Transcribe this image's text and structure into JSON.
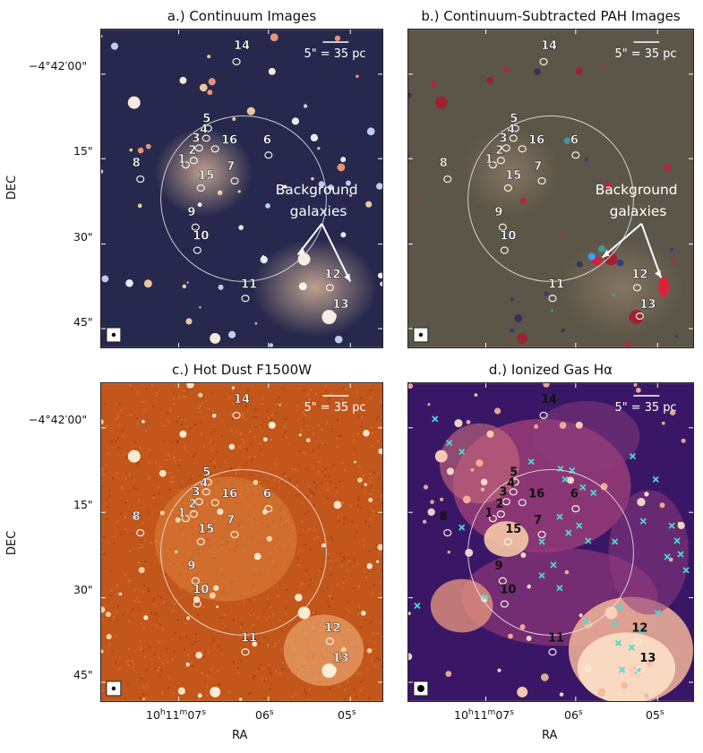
{
  "figure": {
    "panels": [
      {
        "key": "a",
        "title": "a.) Continuum Images",
        "style": "continuum"
      },
      {
        "key": "b",
        "title": "b.) Continuum-Subtracted PAH Images",
        "style": "pah"
      },
      {
        "key": "c",
        "title": "c.) Hot Dust F1500W",
        "style": "hotdust"
      },
      {
        "key": "d",
        "title": "d.) Ionized Gas Hα",
        "style": "halpha"
      }
    ],
    "scale_label": "5\" = 35 pc",
    "annotation_line1": "Background",
    "annotation_line2": "galaxies",
    "dec_label": "DEC",
    "ra_label": "RA",
    "dec_ticks": [
      "−4°42′00\"",
      "15\"",
      "30\"",
      "45\""
    ],
    "ra_ticks": {
      "first_h": "10",
      "h_unit": "h",
      "first_m": "11",
      "m_unit": "m",
      "first_s": "07",
      "s_unit": "s",
      "second": "06",
      "third": "05"
    },
    "sources": [
      "1",
      "2",
      "3",
      "4",
      "5",
      "6",
      "7",
      "8",
      "9",
      "10",
      "11",
      "12",
      "13",
      "14",
      "15",
      "16"
    ],
    "colors": {
      "continuum_bg": "#26294d",
      "pah_bg": "#5b5648",
      "hotdust_bg": "#c2561b",
      "halpha_bg": "#3a1766",
      "circle": "#e8e8e8",
      "cross": "#4fd8d0"
    }
  }
}
